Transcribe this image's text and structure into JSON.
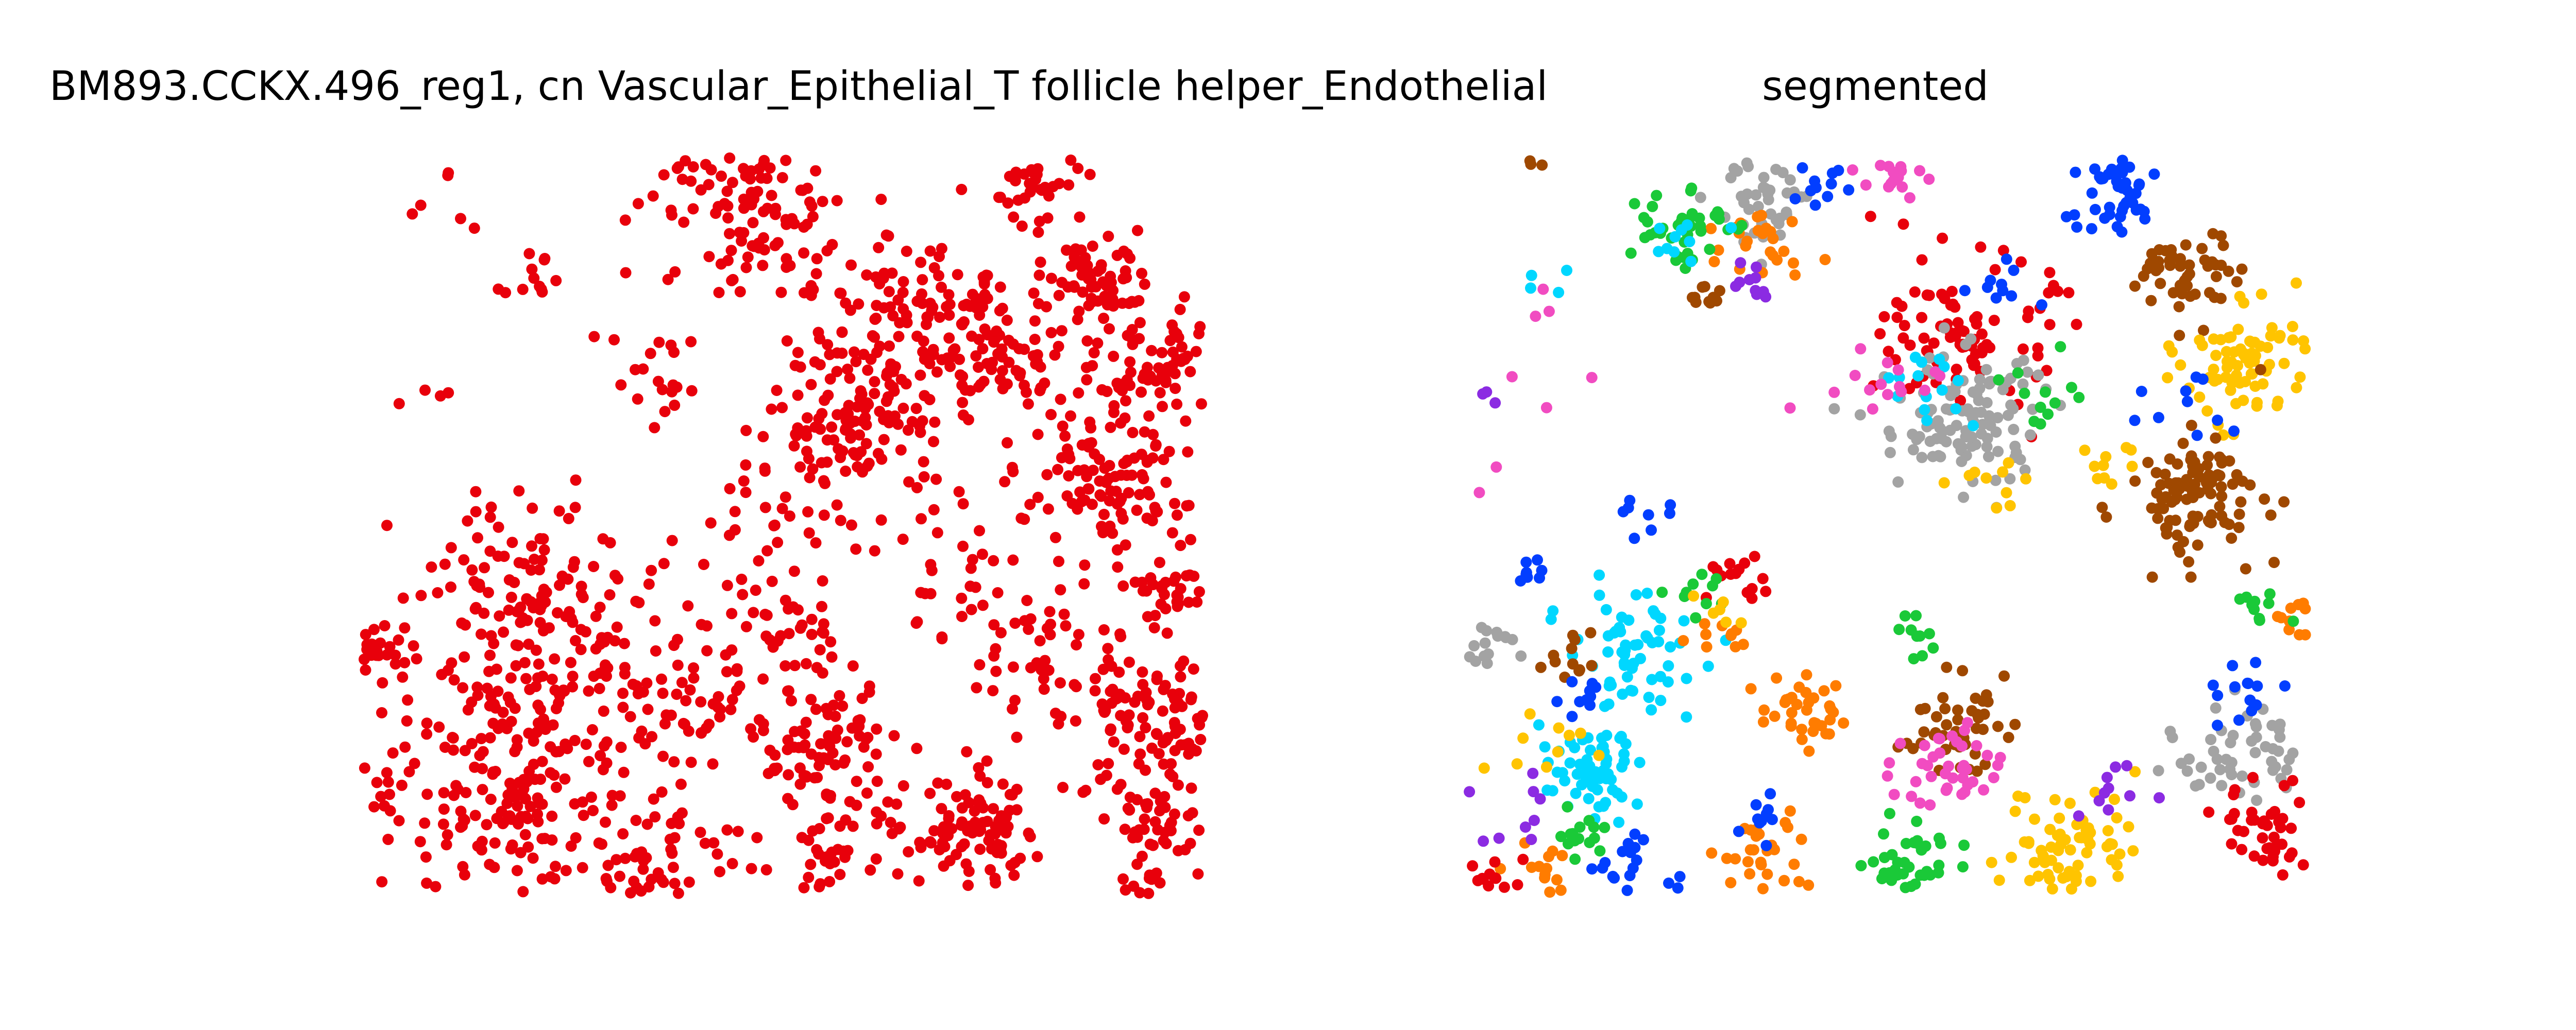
{
  "chart_data": [
    {
      "type": "scatter",
      "title": "BM893.CCKX.496_reg1, cn Vascular_Epithelial_T follicle helper_Endothelial",
      "xlim": [
        0,
        1
      ],
      "ylim": [
        0,
        1
      ],
      "axes_visible": false,
      "grid": false,
      "legend": "none",
      "point_color": "#e8000b",
      "clusters": [
        {
          "cx": 0.46,
          "cy": 0.95,
          "spread": 0.07,
          "count": 120
        },
        {
          "cx": 0.81,
          "cy": 0.96,
          "spread": 0.03,
          "count": 35
        },
        {
          "cx": 0.88,
          "cy": 0.84,
          "spread": 0.03,
          "count": 55
        },
        {
          "cx": 0.64,
          "cy": 0.78,
          "spread": 0.05,
          "count": 90
        },
        {
          "cx": 0.75,
          "cy": 0.74,
          "spread": 0.05,
          "count": 90
        },
        {
          "cx": 0.93,
          "cy": 0.72,
          "spread": 0.05,
          "count": 80
        },
        {
          "cx": 0.59,
          "cy": 0.64,
          "spread": 0.05,
          "count": 120
        },
        {
          "cx": 0.88,
          "cy": 0.54,
          "spread": 0.05,
          "count": 110
        },
        {
          "cx": 0.97,
          "cy": 0.41,
          "spread": 0.03,
          "count": 35
        },
        {
          "cx": 0.24,
          "cy": 0.34,
          "spread": 0.08,
          "count": 140
        },
        {
          "cx": 0.17,
          "cy": 0.15,
          "spread": 0.09,
          "count": 200
        },
        {
          "cx": 0.41,
          "cy": 0.26,
          "spread": 0.04,
          "count": 50
        },
        {
          "cx": 0.55,
          "cy": 0.2,
          "spread": 0.04,
          "count": 80
        },
        {
          "cx": 0.57,
          "cy": 0.05,
          "spread": 0.04,
          "count": 50
        },
        {
          "cx": 0.73,
          "cy": 0.08,
          "spread": 0.04,
          "count": 90
        },
        {
          "cx": 0.94,
          "cy": 0.23,
          "spread": 0.05,
          "count": 100
        },
        {
          "cx": 0.95,
          "cy": 0.08,
          "spread": 0.04,
          "count": 60
        },
        {
          "cx": 0.02,
          "cy": 0.33,
          "spread": 0.02,
          "count": 30
        },
        {
          "cx": 0.35,
          "cy": 0.05,
          "spread": 0.05,
          "count": 60
        },
        {
          "cx": 0.82,
          "cy": 0.33,
          "spread": 0.05,
          "count": 45
        },
        {
          "cx": 0.18,
          "cy": 0.44,
          "spread": 0.05,
          "count": 40
        },
        {
          "cx": 0.52,
          "cy": 0.35,
          "spread": 0.03,
          "count": 30
        },
        {
          "cx": 0.2,
          "cy": 0.84,
          "spread": 0.02,
          "count": 12
        },
        {
          "cx": 0.35,
          "cy": 0.69,
          "spread": 0.04,
          "count": 20
        },
        {
          "cx": 0.48,
          "cy": 0.5,
          "spread": 0.05,
          "count": 30
        },
        {
          "cx": 0.08,
          "cy": 0.95,
          "spread": 0.03,
          "count": 6
        },
        {
          "cx": 0.06,
          "cy": 0.68,
          "spread": 0.02,
          "count": 4
        },
        {
          "cx": 0.5,
          "cy": 0.9,
          "spread": 0.06,
          "count": 30
        },
        {
          "cx": 0.68,
          "cy": 0.45,
          "spread": 0.07,
          "count": 40
        }
      ]
    },
    {
      "type": "scatter",
      "title": "segmented",
      "xlim": [
        0,
        1
      ],
      "ylim": [
        0,
        1
      ],
      "axes_visible": false,
      "grid": false,
      "legend": "none",
      "clusters": [
        {
          "cx": 0.35,
          "cy": 0.94,
          "spread": 0.03,
          "count": 45,
          "color": "#a3a3a3"
        },
        {
          "cx": 0.36,
          "cy": 0.89,
          "spread": 0.025,
          "count": 25,
          "color": "#ff7c00"
        },
        {
          "cx": 0.34,
          "cy": 0.84,
          "spread": 0.015,
          "count": 10,
          "color": "#8b2be2"
        },
        {
          "cx": 0.25,
          "cy": 0.91,
          "spread": 0.03,
          "count": 40,
          "color": "#1ac938"
        },
        {
          "cx": 0.28,
          "cy": 0.81,
          "spread": 0.015,
          "count": 10,
          "color": "#9f4800"
        },
        {
          "cx": 0.25,
          "cy": 0.88,
          "spread": 0.02,
          "count": 10,
          "color": "#00d7ff"
        },
        {
          "cx": 0.42,
          "cy": 0.97,
          "spread": 0.02,
          "count": 12,
          "color": "#023eff"
        },
        {
          "cx": 0.5,
          "cy": 0.97,
          "spread": 0.02,
          "count": 15,
          "color": "#f14cc1"
        },
        {
          "cx": 0.77,
          "cy": 0.95,
          "spread": 0.03,
          "count": 45,
          "color": "#023eff"
        },
        {
          "cx": 0.86,
          "cy": 0.84,
          "spread": 0.03,
          "count": 50,
          "color": "#9f4800"
        },
        {
          "cx": 0.6,
          "cy": 0.76,
          "spread": 0.05,
          "count": 90,
          "color": "#e8000b"
        },
        {
          "cx": 0.93,
          "cy": 0.72,
          "spread": 0.04,
          "count": 80,
          "color": "#ffc400"
        },
        {
          "cx": 0.59,
          "cy": 0.64,
          "spread": 0.05,
          "count": 110,
          "color": "#a3a3a3"
        },
        {
          "cx": 0.55,
          "cy": 0.69,
          "spread": 0.03,
          "count": 15,
          "color": "#00d7ff"
        },
        {
          "cx": 0.87,
          "cy": 0.54,
          "spread": 0.04,
          "count": 100,
          "color": "#9f4800"
        },
        {
          "cx": 0.2,
          "cy": 0.33,
          "spread": 0.04,
          "count": 60,
          "color": "#00d7ff"
        },
        {
          "cx": 0.15,
          "cy": 0.16,
          "spread": 0.03,
          "count": 60,
          "color": "#00d7ff"
        },
        {
          "cx": 0.4,
          "cy": 0.25,
          "spread": 0.025,
          "count": 35,
          "color": "#ff7c00"
        },
        {
          "cx": 0.58,
          "cy": 0.23,
          "spread": 0.03,
          "count": 45,
          "color": "#9f4800"
        },
        {
          "cx": 0.57,
          "cy": 0.17,
          "spread": 0.03,
          "count": 40,
          "color": "#f14cc1"
        },
        {
          "cx": 0.54,
          "cy": 0.04,
          "spread": 0.03,
          "count": 40,
          "color": "#1ac938"
        },
        {
          "cx": 0.72,
          "cy": 0.07,
          "spread": 0.04,
          "count": 70,
          "color": "#ffc400"
        },
        {
          "cx": 0.92,
          "cy": 0.19,
          "spread": 0.035,
          "count": 50,
          "color": "#a3a3a3"
        },
        {
          "cx": 0.96,
          "cy": 0.09,
          "spread": 0.03,
          "count": 45,
          "color": "#e8000b"
        },
        {
          "cx": 0.2,
          "cy": 0.02,
          "spread": 0.03,
          "count": 30,
          "color": "#023eff"
        },
        {
          "cx": 0.14,
          "cy": 0.08,
          "spread": 0.02,
          "count": 15,
          "color": "#1ac938"
        },
        {
          "cx": 0.1,
          "cy": 0.03,
          "spread": 0.02,
          "count": 15,
          "color": "#ff7c00"
        },
        {
          "cx": 0.03,
          "cy": 0.02,
          "spread": 0.02,
          "count": 15,
          "color": "#e8000b"
        },
        {
          "cx": 0.35,
          "cy": 0.05,
          "spread": 0.03,
          "count": 30,
          "color": "#ff7c00"
        },
        {
          "cx": 0.35,
          "cy": 0.1,
          "spread": 0.015,
          "count": 10,
          "color": "#023eff"
        },
        {
          "cx": 0.04,
          "cy": 0.34,
          "spread": 0.02,
          "count": 15,
          "color": "#a3a3a3"
        },
        {
          "cx": 0.07,
          "cy": 0.44,
          "spread": 0.015,
          "count": 8,
          "color": "#023eff"
        },
        {
          "cx": 0.22,
          "cy": 0.51,
          "spread": 0.015,
          "count": 8,
          "color": "#023eff"
        },
        {
          "cx": 0.33,
          "cy": 0.42,
          "spread": 0.02,
          "count": 15,
          "color": "#e8000b"
        },
        {
          "cx": 0.54,
          "cy": 0.35,
          "spread": 0.015,
          "count": 10,
          "color": "#1ac938"
        },
        {
          "cx": 0.99,
          "cy": 0.37,
          "spread": 0.015,
          "count": 12,
          "color": "#ff7c00"
        },
        {
          "cx": 0.94,
          "cy": 0.39,
          "spread": 0.015,
          "count": 10,
          "color": "#1ac938"
        },
        {
          "cx": 0.12,
          "cy": 0.31,
          "spread": 0.02,
          "count": 12,
          "color": "#9f4800"
        },
        {
          "cx": 0.14,
          "cy": 0.27,
          "spread": 0.015,
          "count": 10,
          "color": "#023eff"
        },
        {
          "cx": 0.3,
          "cy": 0.35,
          "spread": 0.02,
          "count": 10,
          "color": "#ff7c00"
        },
        {
          "cx": 0.69,
          "cy": 0.67,
          "spread": 0.03,
          "count": 12,
          "color": "#1ac938"
        },
        {
          "cx": 0.77,
          "cy": 0.58,
          "spread": 0.02,
          "count": 10,
          "color": "#ffc400"
        },
        {
          "cx": 0.85,
          "cy": 0.66,
          "spread": 0.03,
          "count": 10,
          "color": "#023eff"
        },
        {
          "cx": 0.64,
          "cy": 0.56,
          "spread": 0.03,
          "count": 10,
          "color": "#ffc400"
        },
        {
          "cx": 0.48,
          "cy": 0.66,
          "spread": 0.04,
          "count": 15,
          "color": "#f14cc1"
        },
        {
          "cx": 0.92,
          "cy": 0.28,
          "spread": 0.03,
          "count": 15,
          "color": "#023eff"
        },
        {
          "cx": 0.63,
          "cy": 0.82,
          "spread": 0.02,
          "count": 10,
          "color": "#023eff"
        },
        {
          "cx": 0.04,
          "cy": 0.1,
          "spread": 0.03,
          "count": 10,
          "color": "#8b2be2"
        },
        {
          "cx": 0.77,
          "cy": 0.12,
          "spread": 0.03,
          "count": 10,
          "color": "#8b2be2"
        },
        {
          "cx": 0.08,
          "cy": 0.2,
          "spread": 0.03,
          "count": 10,
          "color": "#ffc400"
        },
        {
          "cx": 0.05,
          "cy": 0.6,
          "spread": 0.05,
          "count": 8,
          "color": "#f14cc1"
        },
        {
          "cx": 0.27,
          "cy": 0.4,
          "spread": 0.02,
          "count": 10,
          "color": "#1ac938"
        },
        {
          "cx": 0.31,
          "cy": 0.38,
          "spread": 0.015,
          "count": 6,
          "color": "#ffc400"
        },
        {
          "cx": 0.1,
          "cy": 0.84,
          "spread": 0.02,
          "count": 4,
          "color": "#00d7ff"
        },
        {
          "cx": 0.09,
          "cy": 0.8,
          "spread": 0.015,
          "count": 3,
          "color": "#f14cc1"
        },
        {
          "cx": 0.02,
          "cy": 0.68,
          "spread": 0.01,
          "count": 3,
          "color": "#8b2be2"
        },
        {
          "cx": 0.07,
          "cy": 0.99,
          "spread": 0.01,
          "count": 3,
          "color": "#9f4800"
        }
      ]
    }
  ]
}
